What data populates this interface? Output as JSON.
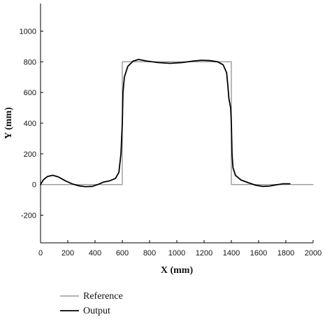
{
  "chart_data": {
    "type": "line",
    "title": "",
    "xlabel": "X (mm)",
    "ylabel": "Y (mm)",
    "xlim": [
      0,
      2000
    ],
    "ylim": [
      -380,
      1180
    ],
    "x_ticks": [
      0,
      200,
      400,
      600,
      800,
      1000,
      1200,
      1400,
      1600,
      1800,
      2000
    ],
    "y_ticks": [
      -200,
      0,
      200,
      400,
      600,
      800,
      1000
    ],
    "grid": false,
    "legend_position": "bottom-left",
    "series": [
      {
        "name": "Reference",
        "color": "#999999",
        "points": [
          [
            0,
            0
          ],
          [
            600,
            0
          ],
          [
            600,
            800
          ],
          [
            1400,
            800
          ],
          [
            1400,
            0
          ],
          [
            2000,
            0
          ]
        ]
      },
      {
        "name": "Output",
        "color": "#000000",
        "points": [
          [
            0,
            0
          ],
          [
            20,
            30
          ],
          [
            50,
            52
          ],
          [
            90,
            60
          ],
          [
            130,
            50
          ],
          [
            180,
            25
          ],
          [
            230,
            5
          ],
          [
            280,
            -8
          ],
          [
            330,
            -14
          ],
          [
            380,
            -12
          ],
          [
            420,
            0
          ],
          [
            460,
            15
          ],
          [
            510,
            25
          ],
          [
            550,
            40
          ],
          [
            575,
            80
          ],
          [
            590,
            200
          ],
          [
            600,
            400
          ],
          [
            605,
            600
          ],
          [
            615,
            700
          ],
          [
            640,
            770
          ],
          [
            680,
            805
          ],
          [
            720,
            815
          ],
          [
            780,
            805
          ],
          [
            860,
            795
          ],
          [
            950,
            790
          ],
          [
            1040,
            795
          ],
          [
            1120,
            805
          ],
          [
            1180,
            810
          ],
          [
            1240,
            808
          ],
          [
            1300,
            800
          ],
          [
            1340,
            780
          ],
          [
            1365,
            730
          ],
          [
            1375,
            640
          ],
          [
            1382,
            560
          ],
          [
            1395,
            500
          ],
          [
            1400,
            400
          ],
          [
            1405,
            200
          ],
          [
            1412,
            110
          ],
          [
            1430,
            60
          ],
          [
            1470,
            30
          ],
          [
            1530,
            10
          ],
          [
            1580,
            -5
          ],
          [
            1630,
            -12
          ],
          [
            1680,
            -10
          ],
          [
            1730,
            -2
          ],
          [
            1780,
            5
          ],
          [
            1830,
            5
          ]
        ]
      }
    ]
  }
}
